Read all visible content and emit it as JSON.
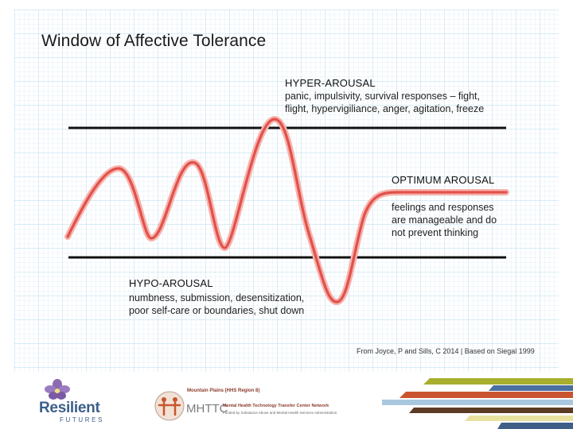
{
  "title": "Window of Affective Tolerance",
  "zones": {
    "hyper": {
      "heading": "HYPER-AROUSAL",
      "lines": [
        "panic, impulsivity, survival responses – fight,",
        "flight, hypervigiliance, anger, agitation, freeze"
      ]
    },
    "optimum": {
      "heading": "OPTIMUM AROUSAL",
      "lines": [
        "feelings and responses",
        "are manageable and do",
        "not prevent thinking"
      ]
    },
    "hypo": {
      "heading": "HYPO-AROUSAL",
      "lines": [
        "numbness, submission, desensitization,",
        "poor self-care or boundaries, shut down"
      ]
    }
  },
  "credit": "From Joyce, P and Sills, C 2014 | Based on Siegal 1999",
  "footer": {
    "resilient": "Resilient",
    "futures": "FUTURES",
    "mhttc_region": "Mountain Plains (HHS Region 8)",
    "mhttc_abbr": "MHTTC",
    "mhttc_name": "Mental Health Technology Transfer Center Network",
    "mhttc_funding": "Funded by Substance Abuse and Mental Health Services Administration"
  },
  "colors": {
    "grid": "#cfe6f3",
    "grid_major": "#b5d8ec",
    "wave": "#e2504a",
    "wave_glow": "#f6b3ae",
    "threshold": "#111111",
    "stripes": [
      "#a8ae2e",
      "#4a6fa0",
      "#c9542f",
      "#a9c8e0",
      "#5b3b23",
      "#e8e1a0",
      "#3f5f86"
    ]
  },
  "icons": [
    "violet-flower-icon",
    "mhttc-figures-icon"
  ]
}
